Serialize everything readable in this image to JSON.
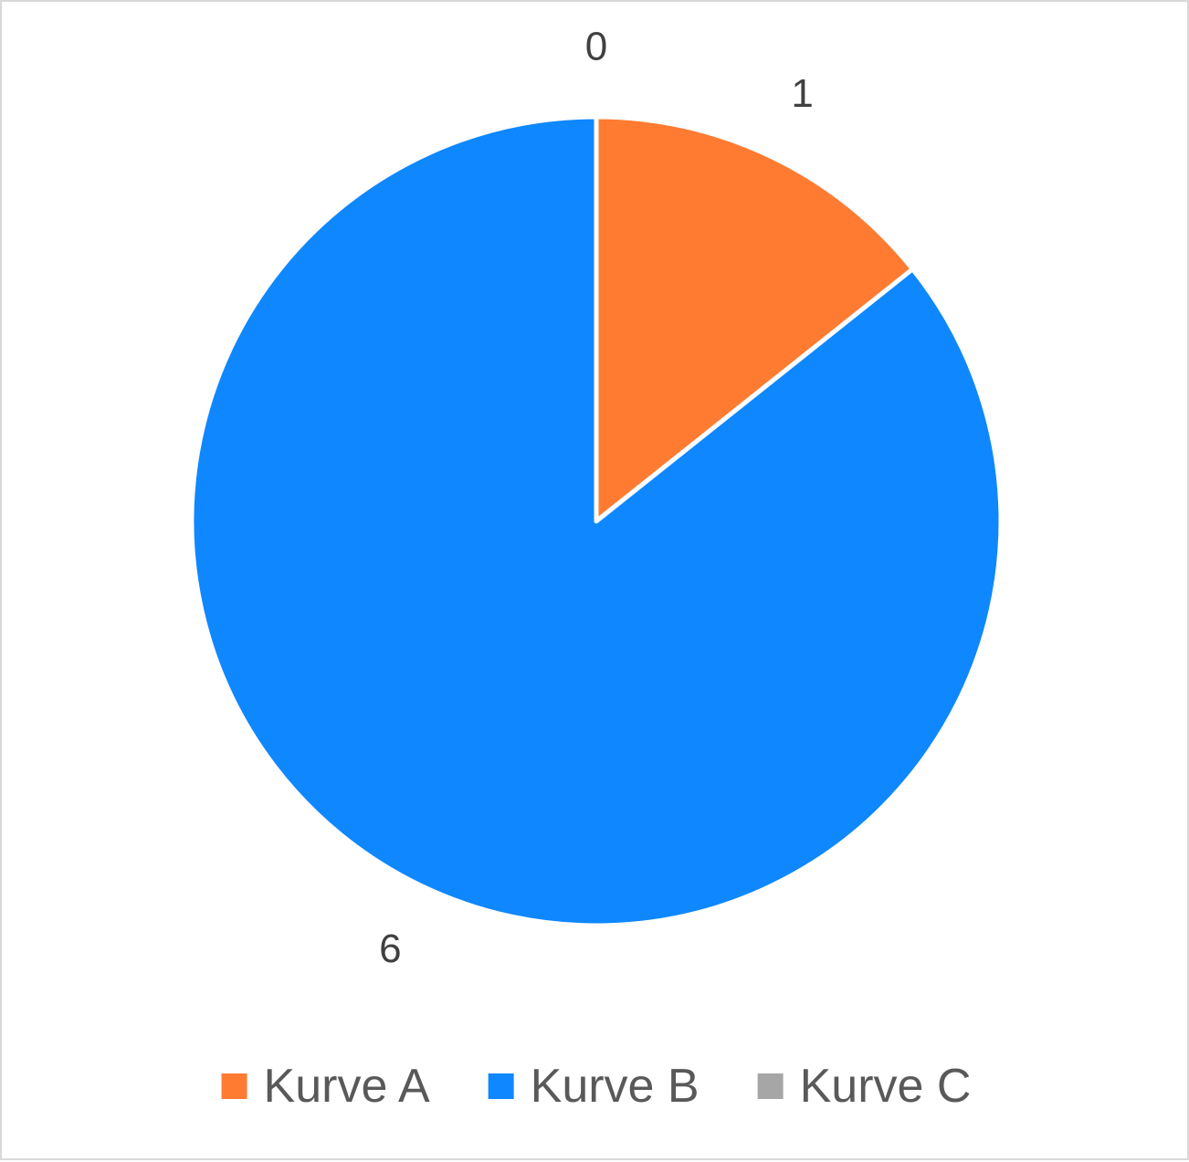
{
  "chart_data": {
    "type": "pie",
    "title": "",
    "categories": [
      "Kurve A",
      "Kurve B",
      "Kurve C"
    ],
    "values": [
      1,
      6,
      0
    ],
    "data_labels": [
      "1",
      "6",
      "0"
    ],
    "colors": [
      "#ff7b32",
      "#0f87ff",
      "#a6a6a6"
    ],
    "start_angle_deg": 0,
    "direction": "clockwise",
    "legend": {
      "position": "bottom",
      "entries": [
        "Kurve A",
        "Kurve B",
        "Kurve C"
      ]
    }
  }
}
